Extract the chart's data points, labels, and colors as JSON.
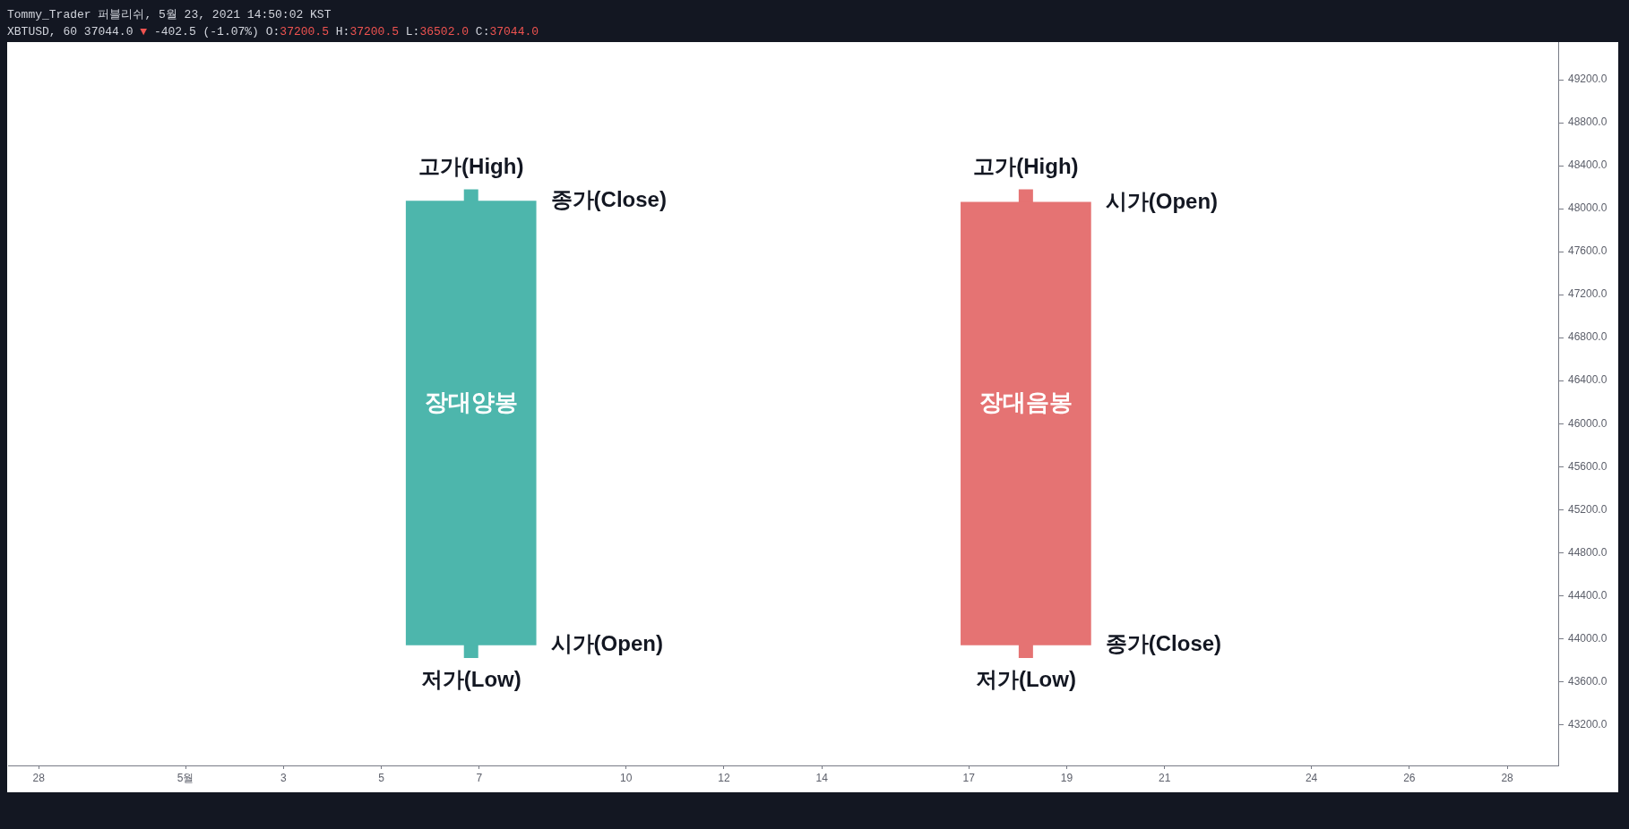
{
  "chart_data": {
    "type": "candlestick",
    "title": "Tommy_Trader 퍼블리쉬, 5월 23, 2021 14:50:02 KST",
    "subtitle": "XBTUSD, 60 37044.0 ▼ -402.5 (-1.07%) O:37200.5 H:37200.5 L:36502.0 C:37044.0",
    "x": [
      "2021-05-06T20:00",
      "2021-05-18T04:00"
    ],
    "ohlc": [
      [
        43940,
        48180,
        43820,
        48070
      ],
      [
        48060,
        48180,
        43820,
        43940
      ]
    ],
    "colors": [
      "#4db6ac",
      "#e57373"
    ],
    "xlim": [
      "2021-04-27T09:00",
      "2021-05-29T01:00"
    ],
    "xticks": [
      {
        "value": "2021-04-28",
        "label": "28"
      },
      {
        "value": "2021-05-01",
        "label": "5월"
      },
      {
        "value": "2021-05-03",
        "label": "3"
      },
      {
        "value": "2021-05-05",
        "label": "5"
      },
      {
        "value": "2021-05-07",
        "label": "7"
      },
      {
        "value": "2021-05-10",
        "label": "10"
      },
      {
        "value": "2021-05-12",
        "label": "12"
      },
      {
        "value": "2021-05-14",
        "label": "14"
      },
      {
        "value": "2021-05-17",
        "label": "17"
      },
      {
        "value": "2021-05-19",
        "label": "19"
      },
      {
        "value": "2021-05-21",
        "label": "21"
      },
      {
        "value": "2021-05-24",
        "label": "24"
      },
      {
        "value": "2021-05-26",
        "label": "26"
      },
      {
        "value": "2021-05-28",
        "label": "28"
      }
    ],
    "ylim": [
      42820,
      49550
    ],
    "yticks": [
      {
        "value": 43200,
        "label": "43200.0"
      },
      {
        "value": 43600,
        "label": "43600.0"
      },
      {
        "value": 44000,
        "label": "44000.0"
      },
      {
        "value": 44400,
        "label": "44400.0"
      },
      {
        "value": 44800,
        "label": "44800.0"
      },
      {
        "value": 45200,
        "label": "45200.0"
      },
      {
        "value": 45600,
        "label": "45600.0"
      },
      {
        "value": 46000,
        "label": "46000.0"
      },
      {
        "value": 46400,
        "label": "46400.0"
      },
      {
        "value": 46800,
        "label": "46800.0"
      },
      {
        "value": 47200,
        "label": "47200.0"
      },
      {
        "value": 47600,
        "label": "47600.0"
      },
      {
        "value": 48000,
        "label": "48000.0"
      },
      {
        "value": 48400,
        "label": "48400.0"
      },
      {
        "value": 48800,
        "label": "48800.0"
      },
      {
        "value": 49200,
        "label": "49200.0"
      }
    ],
    "annotations": [
      {
        "text": "고가(High)",
        "x": "2021-05-06T20:00",
        "y": 48180
      },
      {
        "text": "종가(Close)",
        "x": "2021-05-08T04:00",
        "y": 48070
      },
      "장대양봉",
      {
        "text": "시가(Open)",
        "x": "2021-05-08T04:00",
        "y": 43940
      },
      {
        "text": "저가(Low)",
        "x": "2021-05-06T20:00",
        "y": 43820
      },
      {
        "text": "고가(High)",
        "x": "2021-05-18T04:00",
        "y": 48180
      },
      {
        "text": "시가(Open)",
        "x": "2021-05-19T12:00",
        "y": 48060
      },
      "장대음봉",
      {
        "text": "종가(Close)",
        "x": "2021-05-19T12:00",
        "y": 43940
      },
      {
        "text": "저가(Low)",
        "x": "2021-05-18T04:00",
        "y": 43820
      }
    ]
  }
}
